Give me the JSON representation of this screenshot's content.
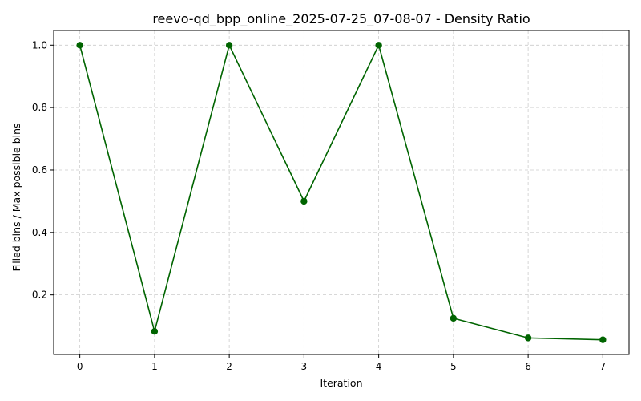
{
  "chart_data": {
    "type": "line",
    "title": "reevo-qd_bpp_online_2025-07-25_07-08-07 - Density Ratio",
    "xlabel": "Iteration",
    "ylabel": "Filled bins / Max possible bins",
    "x": [
      0,
      1,
      2,
      3,
      4,
      5,
      6,
      7
    ],
    "series": [
      {
        "values": [
          1.0,
          0.083,
          1.0,
          0.5,
          1.0,
          0.125,
          0.062,
          0.056
        ],
        "color": "#006400",
        "marker": "circle"
      }
    ],
    "xticks": [
      "0",
      "1",
      "2",
      "3",
      "4",
      "5",
      "6",
      "7"
    ],
    "yticks": [
      "0.2",
      "0.4",
      "0.6",
      "0.8",
      "1.0"
    ],
    "xlim": [
      -0.35,
      7.35
    ],
    "ylim": [
      0.009,
      1.047
    ],
    "grid": true,
    "legend": "none"
  }
}
